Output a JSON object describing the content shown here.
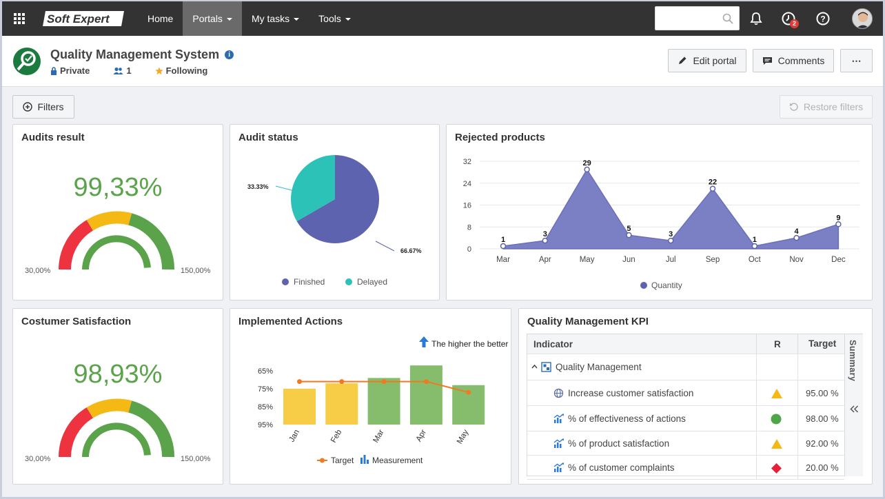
{
  "nav": {
    "logo_text": "Soft Expert",
    "items": [
      {
        "label": "Home",
        "active": false,
        "dropdown": false
      },
      {
        "label": "Portals",
        "active": true,
        "dropdown": true
      },
      {
        "label": "My tasks",
        "active": false,
        "dropdown": true
      },
      {
        "label": "Tools",
        "active": false,
        "dropdown": true
      }
    ],
    "search_placeholder": "",
    "notifications_badge": "2"
  },
  "header": {
    "title": "Quality Management System",
    "privacy": "Private",
    "members": "1",
    "follow": "Following",
    "edit_label": "Edit portal",
    "comments_label": "Comments",
    "more_label": "⋯"
  },
  "toolbar": {
    "filters_label": "Filters",
    "restore_label": "Restore filters"
  },
  "audits_result": {
    "title": "Audits result",
    "value": "99,33%",
    "min": "30,00%",
    "max": "150,00%"
  },
  "audit_status": {
    "title": "Audit status",
    "legend": [
      "Finished",
      "Delayed"
    ]
  },
  "rejected": {
    "title": "Rejected products",
    "legend": "Quantity"
  },
  "satisfaction": {
    "title": "Costumer Satisfaction",
    "value": "98,93%",
    "min": "30,00%",
    "max": "150,00%"
  },
  "actions": {
    "title": "Implemented Actions",
    "note": "The higher the better",
    "legend_target": "Target",
    "legend_measure": "Measurement"
  },
  "kpi": {
    "title": "Quality Management KPI",
    "col_indicator": "Indicator",
    "col_r": "R",
    "col_target": "Target",
    "summary_label": "Summary",
    "group": "Quality Management",
    "rows": [
      {
        "name": "Increase customer satisfaction",
        "status": "warning",
        "target": "95.00 %"
      },
      {
        "name": "% of effectiveness of actions",
        "status": "ok",
        "target": "98.00 %"
      },
      {
        "name": "% of product satisfaction",
        "status": "warning",
        "target": "92.00 %"
      },
      {
        "name": "% of customer complaints",
        "status": "critical",
        "target": "20.00 %"
      }
    ]
  },
  "colors": {
    "accent_green": "#5aa34a",
    "gauge_red": "#ee3340",
    "gauge_yellow": "#f5b915",
    "purple": "#5e63b0",
    "teal": "#2cc2b8",
    "bar_yellow": "#f7cc47",
    "bar_green": "#86bd6c",
    "target_line": "#f07a21"
  },
  "chart_data": [
    {
      "type": "pie",
      "title": "Audit status",
      "categories": [
        "Finished",
        "Delayed"
      ],
      "values": [
        66.67,
        33.33
      ],
      "data_labels": [
        "66.67%",
        "33.33%"
      ],
      "legend": "bottom"
    },
    {
      "type": "area",
      "title": "Rejected products",
      "categories": [
        "Mar",
        "Apr",
        "May",
        "Jun",
        "Jul",
        "Sep",
        "Oct",
        "Nov",
        "Dec"
      ],
      "series": [
        {
          "name": "Quantity",
          "values": [
            1,
            3,
            29,
            5,
            3,
            22,
            1,
            4,
            9
          ]
        }
      ],
      "yticks": [
        0,
        8,
        16,
        24,
        32
      ],
      "ylim": [
        0,
        32
      ],
      "grid": true,
      "legend": "bottom"
    },
    {
      "type": "bar",
      "title": "Implemented Actions",
      "categories": [
        "Jan",
        "Feb",
        "Mar",
        "Apr",
        "May"
      ],
      "series": [
        {
          "name": "Measurement",
          "values": [
            85,
            88,
            91,
            98,
            87
          ]
        },
        {
          "name": "Target",
          "values": [
            89,
            89,
            89,
            89,
            83
          ]
        }
      ],
      "bar_colors": [
        "#f7cc47",
        "#f7cc47",
        "#86bd6c",
        "#86bd6c",
        "#86bd6c"
      ],
      "ytick_labels": [
        "65%",
        "75%",
        "85%",
        "95%"
      ],
      "ylim": [
        65,
        98
      ],
      "legend": "bottom"
    }
  ]
}
